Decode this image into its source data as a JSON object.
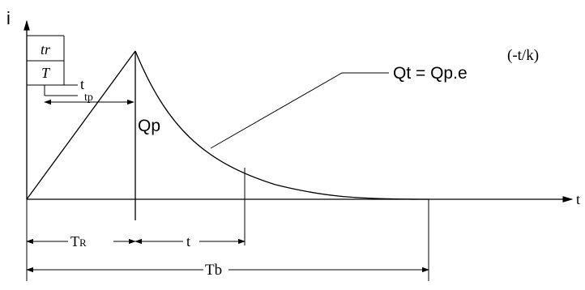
{
  "axes": {
    "y_label": "i",
    "x_label": "t"
  },
  "rainfall_box": {
    "top_label": "tr",
    "bottom_label": "T",
    "side_label": "t"
  },
  "labels": {
    "tp": "tp",
    "qp": "Qp",
    "formula_main": "Qt = Qp.e",
    "formula_exp": "(-t/k)"
  },
  "dimensions": {
    "tr_main": "T",
    "tr_sub": "R",
    "t": "t",
    "tb": "Tb"
  }
}
